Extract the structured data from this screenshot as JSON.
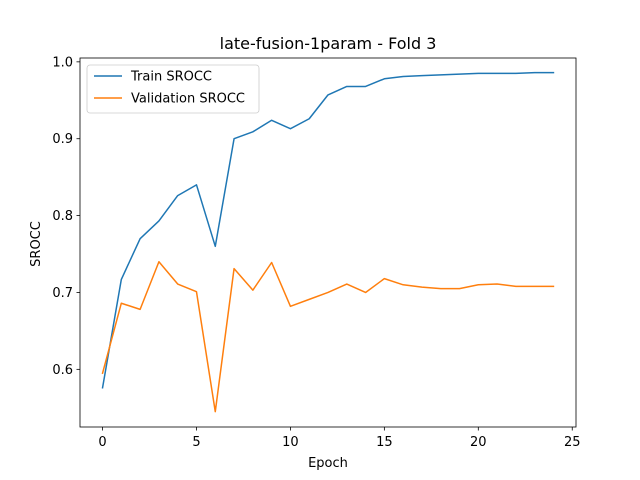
{
  "chart_data": {
    "type": "line",
    "title": "late-fusion-1param - Fold 3",
    "xlabel": "Epoch",
    "ylabel": "SROCC",
    "xlim": [
      -1.2,
      25.2
    ],
    "ylim": [
      0.525,
      1.005
    ],
    "xticks": [
      0,
      5,
      10,
      15,
      20,
      25
    ],
    "yticks": [
      0.6,
      0.7,
      0.8,
      0.9,
      1.0
    ],
    "xtick_labels": [
      "0",
      "5",
      "10",
      "15",
      "20",
      "25"
    ],
    "ytick_labels": [
      "0.6",
      "0.7",
      "0.8",
      "0.9",
      "1.0"
    ],
    "x": [
      0,
      1,
      2,
      3,
      4,
      5,
      6,
      7,
      8,
      9,
      10,
      11,
      12,
      13,
      14,
      15,
      16,
      17,
      18,
      19,
      20,
      21,
      22,
      23,
      24
    ],
    "series": [
      {
        "name": "Train SROCC",
        "color": "#1f77b4",
        "values": [
          0.576,
          0.717,
          0.77,
          0.793,
          0.826,
          0.84,
          0.76,
          0.9,
          0.909,
          0.924,
          0.913,
          0.926,
          0.957,
          0.968,
          0.968,
          0.978,
          0.981,
          0.982,
          0.983,
          0.984,
          0.985,
          0.985,
          0.985,
          0.986,
          0.986
        ]
      },
      {
        "name": "Validation SROCC",
        "color": "#ff7f0e",
        "values": [
          0.595,
          0.686,
          0.678,
          0.74,
          0.711,
          0.701,
          0.545,
          0.731,
          0.703,
          0.739,
          0.682,
          0.691,
          0.7,
          0.711,
          0.7,
          0.718,
          0.71,
          0.707,
          0.705,
          0.705,
          0.71,
          0.711,
          0.708,
          0.708,
          0.708
        ]
      }
    ],
    "legend_position": "top-left",
    "grid": false
  }
}
